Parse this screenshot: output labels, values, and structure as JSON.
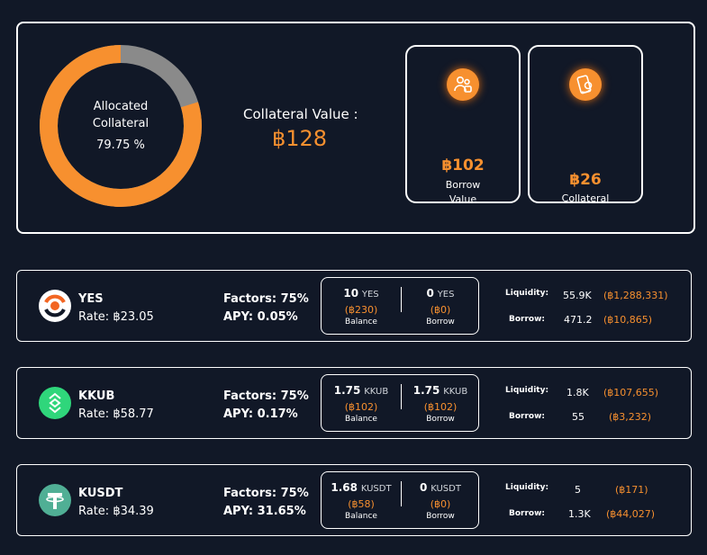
{
  "summary": {
    "allocated_label": "Allocated Collateral",
    "allocated_pct": "79.75 %",
    "allocated_fraction": 0.7975,
    "collateral_value_label": "Collateral Value :",
    "collateral_value": "฿128",
    "borrow_value": "฿102",
    "borrow_label": "Borrow Value",
    "borrow_icon": "users-icon",
    "collateral_amount": "฿26",
    "collateral_label": "Collateral",
    "collateral_icon": "phone-coin-icon"
  },
  "colors": {
    "accent": "#f7902f",
    "background": "#111827",
    "donut_rest": "#8a8a8a"
  },
  "assets": [
    {
      "symbol": "YES",
      "rate": "Rate: ฿23.05",
      "factors_label": "Factors:",
      "factors": "75%",
      "apy_label": "APY:",
      "apy": "0.05%",
      "balance_amount": "10",
      "balance_symbol": "YES",
      "balance_fiat": "(฿230)",
      "balance_label": "Balance",
      "borrow_amount": "0",
      "borrow_symbol": "YES",
      "borrow_fiat": "(฿0)",
      "borrow_label": "Borrow",
      "liquidity_label": "Liquidity:",
      "liquidity": "55.9K",
      "liquidity_fiat": "(฿1,288,331)",
      "borrowed_label": "Borrow:",
      "borrowed": "471.2",
      "borrowed_fiat": "(฿10,865)",
      "icon": "yes-token-icon"
    },
    {
      "symbol": "KKUB",
      "rate": "Rate: ฿58.77",
      "factors_label": "Factors:",
      "factors": "75%",
      "apy_label": "APY:",
      "apy": "0.17%",
      "balance_amount": "1.75",
      "balance_symbol": "KKUB",
      "balance_fiat": "(฿102)",
      "balance_label": "Balance",
      "borrow_amount": "1.75",
      "borrow_symbol": "KKUB",
      "borrow_fiat": "(฿102)",
      "borrow_label": "Borrow",
      "liquidity_label": "Liquidity:",
      "liquidity": "1.8K",
      "liquidity_fiat": "(฿107,655)",
      "borrowed_label": "Borrow:",
      "borrowed": "55",
      "borrowed_fiat": "(฿3,232)",
      "icon": "kkub-token-icon"
    },
    {
      "symbol": "KUSDT",
      "rate": "Rate: ฿34.39",
      "factors_label": "Factors:",
      "factors": "75%",
      "apy_label": "APY:",
      "apy": "31.65%",
      "balance_amount": "1.68",
      "balance_symbol": "KUSDT",
      "balance_fiat": "(฿58)",
      "balance_label": "Balance",
      "borrow_amount": "0",
      "borrow_symbol": "KUSDT",
      "borrow_fiat": "(฿0)",
      "borrow_label": "Borrow",
      "liquidity_label": "Liquidity:",
      "liquidity": "5",
      "liquidity_fiat": "(฿171)",
      "borrowed_label": "Borrow:",
      "borrowed": "1.3K",
      "borrowed_fiat": "(฿44,027)",
      "icon": "kusdt-token-icon"
    }
  ]
}
